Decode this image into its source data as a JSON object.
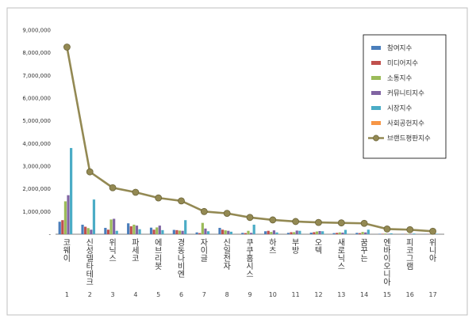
{
  "chart_data": {
    "type": "bar",
    "categories": [
      "코웨이",
      "신성델타테크",
      "위닉스",
      "파세코",
      "에브리봇",
      "경동나비엔",
      "자이글",
      "신일전자",
      "쿠쿠홈시스",
      "하츠",
      "부방",
      "오텍",
      "새로닉스",
      "꿈꾸는",
      "엔바이오니아",
      "피코그램",
      "위니아"
    ],
    "category_numbers": [
      "1",
      "2",
      "3",
      "4",
      "5",
      "6",
      "7",
      "8",
      "9",
      "10",
      "11",
      "12",
      "13",
      "14",
      "15",
      "16",
      "17"
    ],
    "ylim": [
      0,
      9000000
    ],
    "yticks": [
      "9,000,000",
      "8,000,000",
      "7,000,000",
      "6,000,000",
      "5,000,000",
      "4,000,000",
      "3,000,000",
      "2,000,000",
      "1,000,000",
      "-"
    ],
    "legend_position": "top-right",
    "series": [
      {
        "name": "참여지수",
        "color": "#4a7ebb",
        "kind": "bar",
        "values": [
          550000,
          420000,
          280000,
          480000,
          290000,
          190000,
          80000,
          280000,
          60000,
          130000,
          60000,
          70000,
          50000,
          60000,
          20000,
          15000,
          10000
        ]
      },
      {
        "name": "미디어지수",
        "color": "#c0504d",
        "kind": "bar",
        "values": [
          620000,
          330000,
          200000,
          350000,
          200000,
          180000,
          50000,
          200000,
          50000,
          150000,
          90000,
          90000,
          60000,
          50000,
          20000,
          10000,
          10000
        ]
      },
      {
        "name": "소통지수",
        "color": "#9bbb59",
        "kind": "bar",
        "values": [
          1450000,
          270000,
          650000,
          420000,
          300000,
          160000,
          500000,
          170000,
          150000,
          100000,
          90000,
          120000,
          80000,
          100000,
          30000,
          20000,
          15000
        ]
      },
      {
        "name": "커뮤니티지수",
        "color": "#8064a2",
        "kind": "bar",
        "values": [
          1720000,
          200000,
          680000,
          380000,
          380000,
          150000,
          250000,
          150000,
          60000,
          170000,
          160000,
          140000,
          70000,
          80000,
          20000,
          15000,
          10000
        ]
      },
      {
        "name": "시장지수",
        "color": "#4bacc6",
        "kind": "bar",
        "values": [
          3800000,
          1530000,
          150000,
          220000,
          180000,
          620000,
          130000,
          110000,
          420000,
          80000,
          150000,
          130000,
          190000,
          200000,
          40000,
          30000,
          20000
        ]
      },
      {
        "name": "사회공헌지수",
        "color": "#f79646",
        "kind": "bar",
        "values": [
          0,
          0,
          0,
          0,
          0,
          0,
          0,
          0,
          0,
          0,
          0,
          0,
          0,
          0,
          0,
          0,
          0
        ]
      },
      {
        "name": "브랜드평판지수",
        "color": "#938953",
        "kind": "line",
        "values": [
          8250000,
          2750000,
          2050000,
          1850000,
          1600000,
          1470000,
          1000000,
          920000,
          740000,
          630000,
          560000,
          520000,
          500000,
          480000,
          230000,
          200000,
          130000
        ]
      }
    ]
  }
}
